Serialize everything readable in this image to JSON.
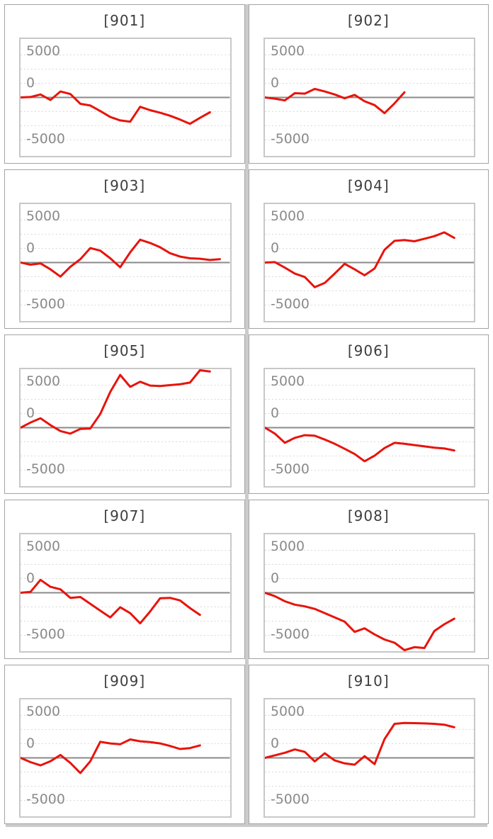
{
  "colors": {
    "series_red": "#e8130b",
    "zero_line": "#8a8a8a",
    "grid_dotted": "#d8d8d8",
    "plot_border": "#c8c8c8",
    "tile_border": "#a3a3a3",
    "divider_gray": "#cbcbcb",
    "title_text": "#3d3d3d",
    "axis_text": "#8a8a8a"
  },
  "axis": {
    "tick_labels": [
      "5000",
      "0",
      "-5000"
    ],
    "tick_values": [
      5000,
      0,
      -5000
    ]
  },
  "chart_data": {
    "type": "line",
    "layout": "5x2 grid of panels, no x-axis labels, legend off, dotted horizontal grid, solid zero line",
    "ylim": [
      -6875,
      6875
    ],
    "grid_interval": 1667,
    "x_slots": 22,
    "panels": [
      {
        "title": "[901]",
        "values": [
          0,
          50,
          350,
          -300,
          700,
          400,
          -750,
          -950,
          -1600,
          -2300,
          -2700,
          -2850,
          -1100,
          -1500,
          -1800,
          -2150,
          -2600,
          -3100,
          -2400,
          -1750
        ]
      },
      {
        "title": "[902]",
        "values": [
          0,
          -150,
          -350,
          500,
          450,
          1000,
          700,
          350,
          -100,
          300,
          -450,
          -900,
          -1850,
          -700,
          600
        ]
      },
      {
        "title": "[903]",
        "values": [
          0,
          -250,
          -100,
          -800,
          -1650,
          -500,
          400,
          1700,
          1400,
          500,
          -550,
          1200,
          2680,
          2300,
          1800,
          1100,
          700,
          500,
          450,
          300,
          400
        ]
      },
      {
        "title": "[904]",
        "values": [
          0,
          50,
          -600,
          -1300,
          -1700,
          -2900,
          -2400,
          -1300,
          -150,
          -800,
          -1500,
          -700,
          1500,
          2550,
          2650,
          2500,
          2800,
          3100,
          3550,
          2900
        ]
      },
      {
        "title": "[905]",
        "values": [
          0,
          600,
          1100,
          300,
          -400,
          -700,
          -150,
          -100,
          1600,
          4200,
          6200,
          4800,
          5400,
          4950,
          4900,
          5000,
          5100,
          5300,
          6900,
          6600
        ]
      },
      {
        "title": "[906]",
        "values": [
          0,
          -700,
          -1780,
          -1200,
          -880,
          -950,
          -1400,
          -1900,
          -2480,
          -3100,
          -3950,
          -3300,
          -2400,
          -1780,
          -1900,
          -2050,
          -2200,
          -2350,
          -2450,
          -2680
        ]
      },
      {
        "title": "[907]",
        "values": [
          0,
          100,
          1520,
          700,
          400,
          -600,
          -500,
          -1300,
          -2100,
          -2900,
          -1700,
          -2400,
          -3600,
          -2200,
          -650,
          -600,
          -900,
          -1800,
          -2600
        ]
      },
      {
        "title": "[908]",
        "values": [
          0,
          -400,
          -1000,
          -1400,
          -1600,
          -1900,
          -2400,
          -2900,
          -3400,
          -4600,
          -4180,
          -4900,
          -5500,
          -5875,
          -6800,
          -6400,
          -6500,
          -4500,
          -3700,
          -3050
        ]
      },
      {
        "title": "[909]",
        "values": [
          0,
          -500,
          -880,
          -400,
          340,
          -600,
          -1780,
          -400,
          1890,
          1700,
          1600,
          2170,
          1950,
          1850,
          1700,
          1400,
          1040,
          1150,
          1470
        ]
      },
      {
        "title": "[910]",
        "values": [
          0,
          300,
          600,
          990,
          700,
          -420,
          540,
          -300,
          -650,
          -800,
          200,
          -730,
          2200,
          4000,
          4100,
          4080,
          4050,
          4000,
          3900,
          3600
        ]
      }
    ]
  }
}
